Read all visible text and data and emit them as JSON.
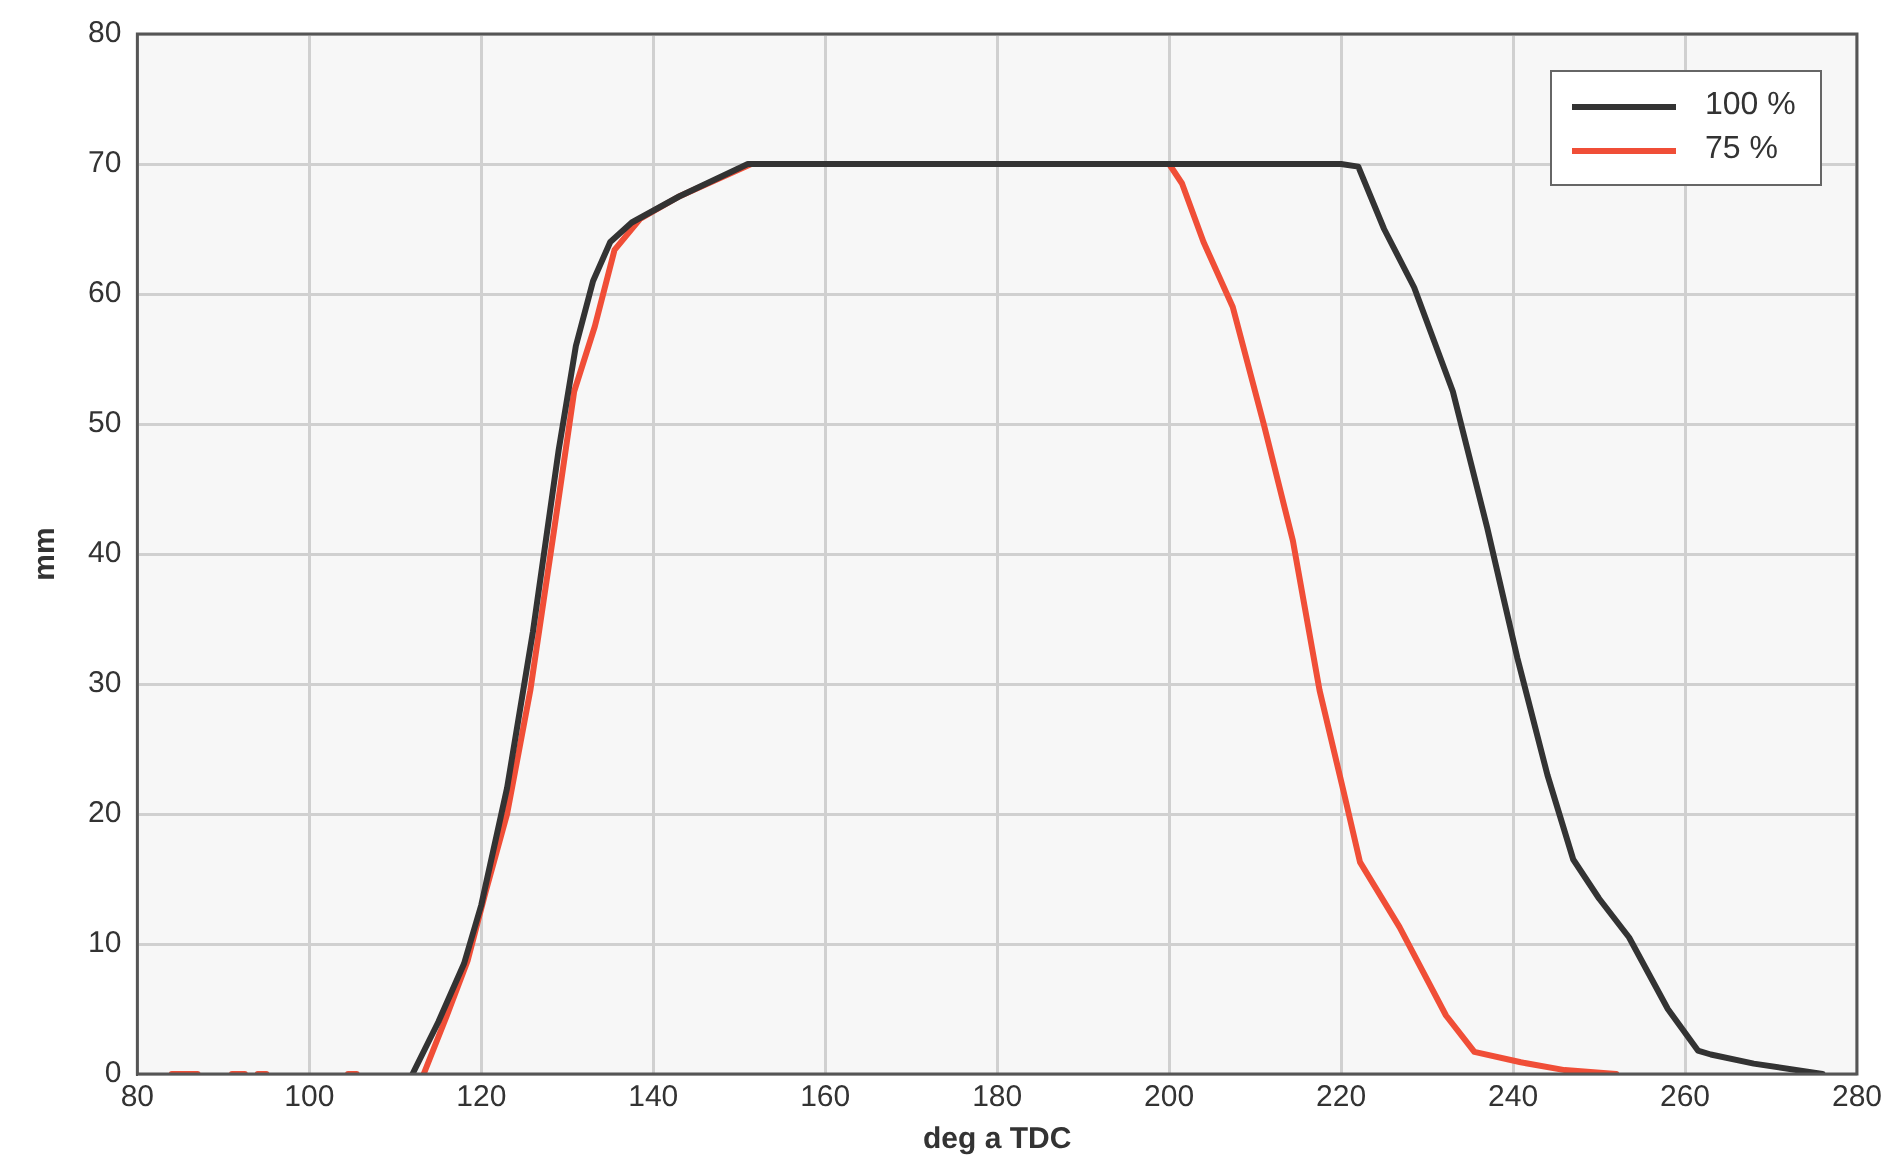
{
  "chart_data": {
    "type": "line",
    "xlabel": "deg a TDC",
    "ylabel": "mm",
    "xlim": [
      80,
      280
    ],
    "xticks": [
      80,
      100,
      120,
      140,
      160,
      180,
      200,
      220,
      240,
      260,
      280
    ],
    "ylim": [
      0,
      80
    ],
    "yticks": [
      0,
      10,
      20,
      30,
      40,
      50,
      60,
      70,
      80
    ],
    "grid": true,
    "legend": "top right",
    "marker": "none",
    "line_style": "solid",
    "series": [
      {
        "name": "100 %",
        "color": "#333333",
        "x": [
          112,
          115,
          118,
          120,
          123,
          126,
          129,
          131,
          133,
          135,
          137.5,
          143,
          151,
          220,
          222,
          225,
          228.5,
          233,
          237,
          240.5,
          244,
          247,
          250,
          253.5,
          258,
          261.5,
          263,
          268,
          276
        ],
        "values": [
          0,
          4,
          8.5,
          13,
          22,
          34,
          48,
          56,
          61,
          64,
          65.5,
          67.5,
          70,
          70,
          69.8,
          65,
          60.5,
          52.5,
          42,
          32,
          23,
          16.5,
          13.5,
          10.5,
          5,
          1.8,
          1.5,
          0.8,
          0
        ]
      },
      {
        "name": "75 %",
        "color": "#f04e37",
        "x": [
          84,
          87,
          null,
          91,
          92.5,
          null,
          94,
          95,
          null,
          104.5,
          105.5,
          null,
          113.3,
          116,
          118.4,
          120.5,
          123,
          125.7,
          128.5,
          130.8,
          133.2,
          135.5,
          138.5,
          143,
          151.4,
          200,
          201.5,
          204,
          207.4,
          211,
          214.4,
          217.5,
          220.3,
          222.2,
          226.8,
          232.2,
          235.5,
          240.9,
          246,
          252
        ],
        "values": [
          0,
          0,
          null,
          0,
          0,
          null,
          0,
          0,
          null,
          0,
          0,
          null,
          0,
          4.5,
          8.7,
          14,
          20,
          29.5,
          42,
          52.5,
          57.5,
          63.4,
          65.8,
          67.5,
          70,
          70,
          68.5,
          64,
          59,
          50,
          41,
          29.5,
          21.7,
          16.3,
          11.3,
          4.5,
          1.7,
          0.9,
          0.3,
          0
        ]
      }
    ]
  }
}
